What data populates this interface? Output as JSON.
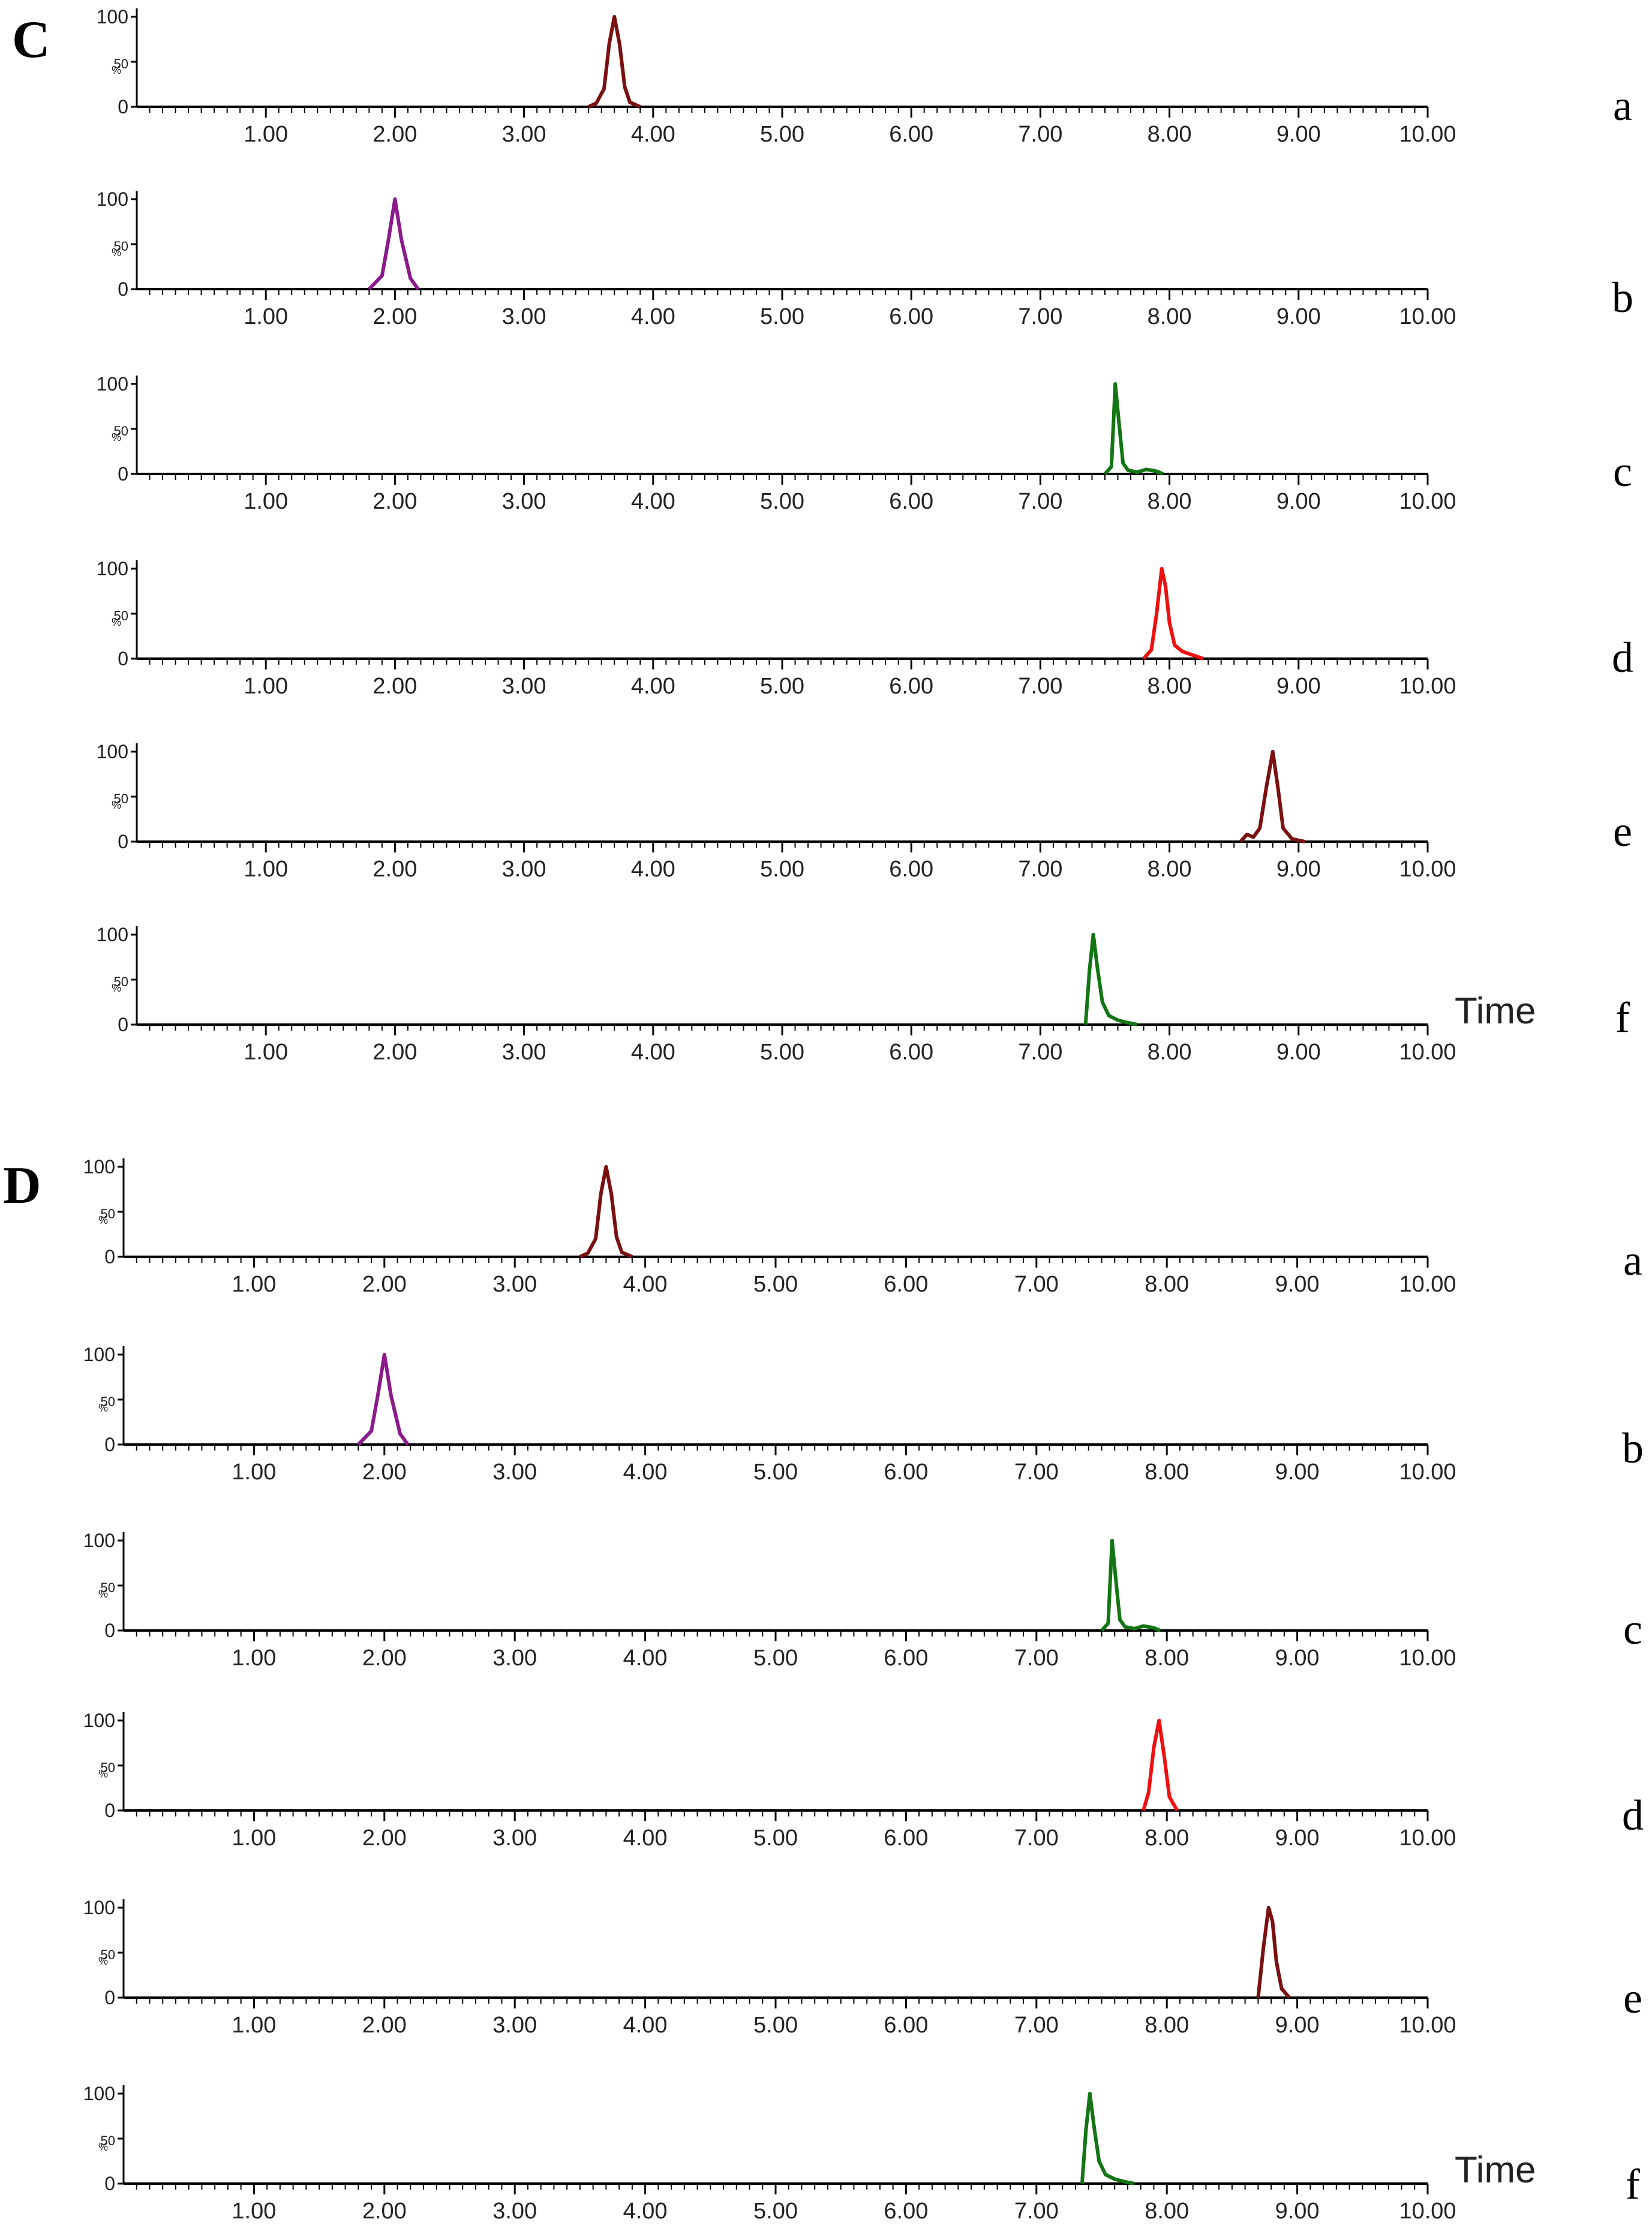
{
  "chart_data": [
    {
      "panel": "C",
      "type": "line",
      "xlim": [
        0,
        10
      ],
      "ylim": [
        0,
        100
      ],
      "x_tick_labels": [
        "1.00",
        "2.00",
        "3.00",
        "4.00",
        "5.00",
        "6.00",
        "7.00",
        "8.00",
        "9.00",
        "10.00"
      ],
      "y_tick_labels": [
        "100",
        "50",
        "0"
      ],
      "xlabel": "Time",
      "ylabel": "%",
      "grid": false,
      "series": [
        {
          "name": "a",
          "color": "#7b1010",
          "x": [
            3.5,
            3.56,
            3.62,
            3.66,
            3.7,
            3.74,
            3.78,
            3.82,
            3.9
          ],
          "y": [
            0,
            4,
            20,
            70,
            100,
            70,
            22,
            5,
            0
          ]
        },
        {
          "name": "b",
          "color": "#8b1a8b",
          "x": [
            1.8,
            1.9,
            1.95,
            2.0,
            2.05,
            2.12,
            2.18
          ],
          "y": [
            0,
            15,
            55,
            100,
            55,
            12,
            0
          ]
        },
        {
          "name": "c",
          "color": "#137513",
          "x": [
            7.5,
            7.55,
            7.58,
            7.61,
            7.64,
            7.68,
            7.75,
            7.82,
            7.9,
            7.95
          ],
          "y": [
            0,
            8,
            100,
            55,
            12,
            4,
            2,
            5,
            3,
            0
          ]
        },
        {
          "name": "d",
          "color": "#ee1111",
          "x": [
            7.8,
            7.86,
            7.9,
            7.94,
            7.97,
            8.0,
            8.04,
            8.1,
            8.18,
            8.26
          ],
          "y": [
            0,
            10,
            50,
            100,
            80,
            40,
            15,
            8,
            4,
            0
          ]
        },
        {
          "name": "e",
          "color": "#7b1010",
          "x": [
            8.55,
            8.6,
            8.65,
            8.7,
            8.75,
            8.8,
            8.84,
            8.88,
            8.95,
            9.05
          ],
          "y": [
            0,
            8,
            5,
            15,
            60,
            100,
            60,
            15,
            3,
            0
          ]
        },
        {
          "name": "f",
          "color": "#137513",
          "x": [
            7.35,
            7.38,
            7.41,
            7.44,
            7.48,
            7.53,
            7.6,
            7.68,
            7.75
          ],
          "y": [
            0,
            60,
            100,
            65,
            25,
            10,
            5,
            2,
            0
          ]
        }
      ]
    },
    {
      "panel": "D",
      "type": "line",
      "xlim": [
        0,
        10
      ],
      "ylim": [
        0,
        100
      ],
      "x_tick_labels": [
        "1.00",
        "2.00",
        "3.00",
        "4.00",
        "5.00",
        "6.00",
        "7.00",
        "8.00",
        "9.00",
        "10.00"
      ],
      "y_tick_labels": [
        "100",
        "50",
        "0"
      ],
      "xlabel": "Time",
      "ylabel": "%",
      "grid": false,
      "series": [
        {
          "name": "a",
          "color": "#7b1010",
          "x": [
            3.5,
            3.56,
            3.62,
            3.66,
            3.7,
            3.74,
            3.78,
            3.82,
            3.9
          ],
          "y": [
            0,
            4,
            20,
            70,
            100,
            70,
            22,
            5,
            0
          ]
        },
        {
          "name": "b",
          "color": "#8b1a8b",
          "x": [
            1.8,
            1.9,
            1.95,
            2.0,
            2.05,
            2.12,
            2.18
          ],
          "y": [
            0,
            15,
            55,
            100,
            55,
            12,
            0
          ]
        },
        {
          "name": "c",
          "color": "#137513",
          "x": [
            7.5,
            7.55,
            7.58,
            7.61,
            7.64,
            7.68,
            7.75,
            7.82,
            7.9,
            7.95
          ],
          "y": [
            0,
            8,
            100,
            55,
            12,
            4,
            2,
            5,
            3,
            0
          ]
        },
        {
          "name": "d",
          "color": "#ee1111",
          "x": [
            7.82,
            7.86,
            7.9,
            7.94,
            7.98,
            8.02,
            8.08
          ],
          "y": [
            0,
            20,
            70,
            100,
            60,
            15,
            0
          ]
        },
        {
          "name": "e",
          "color": "#7b1010",
          "x": [
            8.7,
            8.74,
            8.78,
            8.81,
            8.84,
            8.88,
            8.94
          ],
          "y": [
            0,
            55,
            100,
            85,
            40,
            10,
            0
          ]
        },
        {
          "name": "f",
          "color": "#137513",
          "x": [
            7.35,
            7.38,
            7.41,
            7.44,
            7.48,
            7.53,
            7.6,
            7.68,
            7.75
          ],
          "y": [
            0,
            60,
            100,
            65,
            25,
            10,
            5,
            2,
            0
          ]
        }
      ]
    }
  ]
}
